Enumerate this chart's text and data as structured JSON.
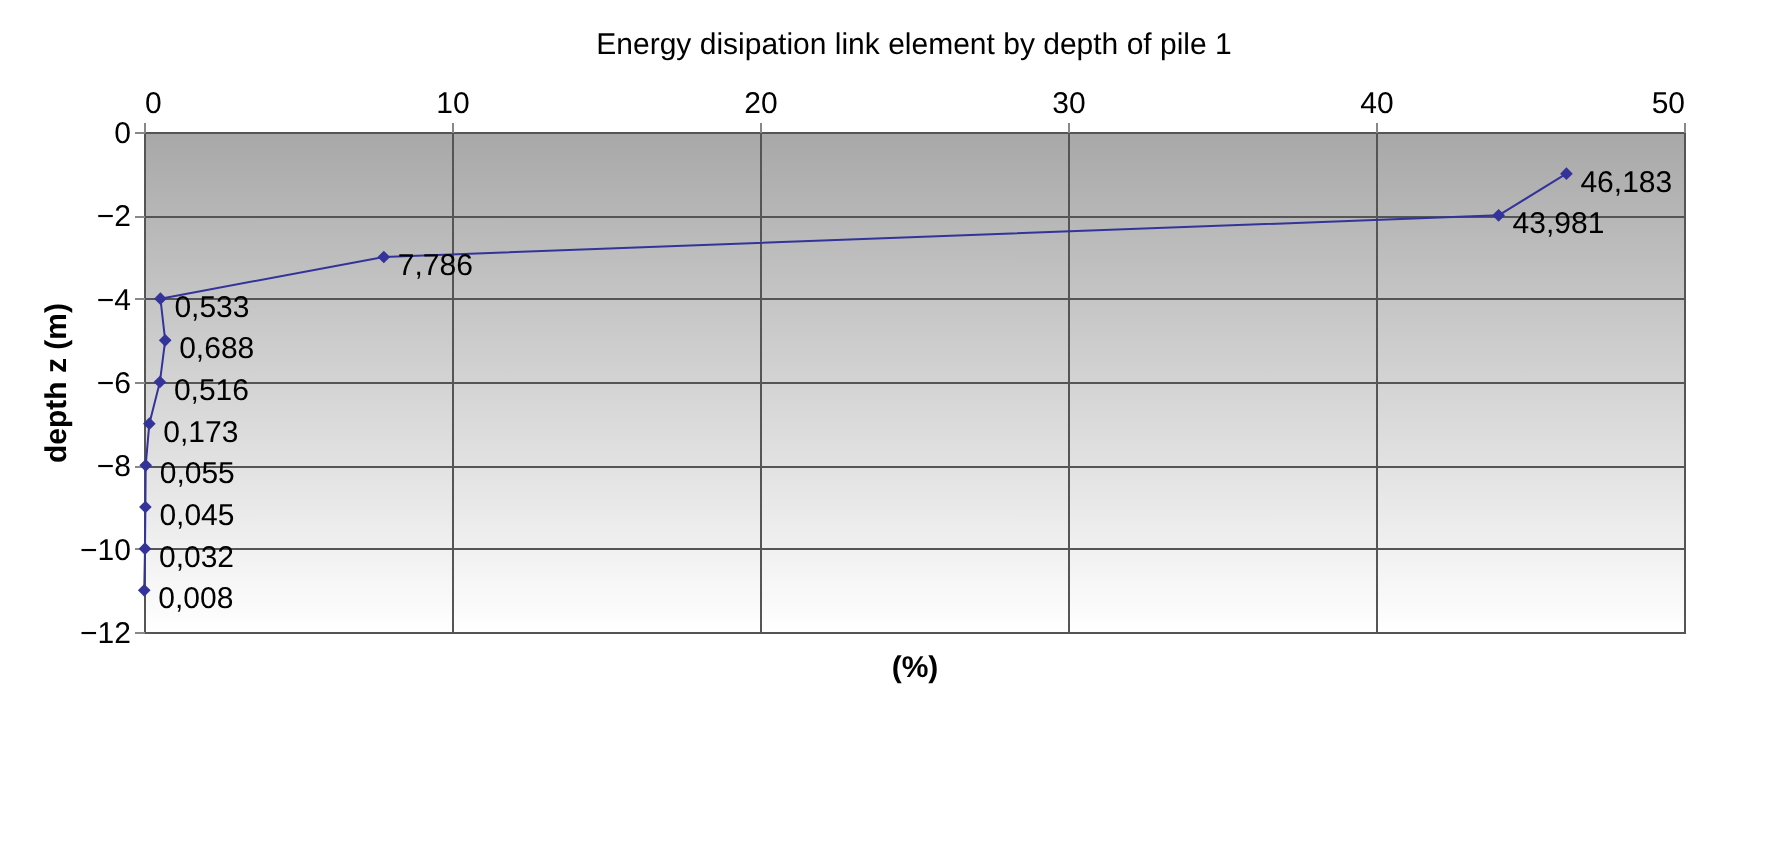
{
  "chart_data": {
    "type": "line",
    "title": "Energy disipation link element by depth of pile 1",
    "xlabel": "(%)",
    "ylabel": "depth z (m)",
    "x": [
      46.183,
      43.981,
      7.786,
      0.533,
      0.688,
      0.516,
      0.173,
      0.055,
      0.045,
      0.032,
      0.008
    ],
    "series": [
      {
        "color": "#333399",
        "values": [
          -1,
          -2,
          -3,
          -4,
          -5,
          -6,
          -7,
          -8,
          -9,
          -10,
          -11
        ]
      }
    ],
    "annotations": [
      {
        "text": "46,183",
        "x": 46.183,
        "y": -1
      },
      {
        "text": "43,981",
        "x": 43.981,
        "y": -2
      },
      {
        "text": "7,786",
        "x": 7.786,
        "y": -3
      },
      {
        "text": "0,533",
        "x": 0.533,
        "y": -4
      },
      {
        "text": "0,688",
        "x": 0.688,
        "y": -5
      },
      {
        "text": "0,516",
        "x": 0.516,
        "y": -6
      },
      {
        "text": "0,173",
        "x": 0.173,
        "y": -7
      },
      {
        "text": "0,055",
        "x": 0.055,
        "y": -8
      },
      {
        "text": "0,045",
        "x": 0.045,
        "y": -9
      },
      {
        "text": "0,032",
        "x": 0.032,
        "y": -10
      },
      {
        "text": "0,008",
        "x": 0.008,
        "y": -11
      }
    ],
    "xlim": [
      0,
      50
    ],
    "xticks": [
      0,
      10,
      20,
      30,
      40,
      50
    ],
    "ylim": [
      -12,
      0
    ],
    "yticks": [
      0,
      -2,
      -4,
      -6,
      -8,
      -10,
      -12
    ],
    "grid": true,
    "marker": "diamond",
    "line_style": "solid"
  }
}
